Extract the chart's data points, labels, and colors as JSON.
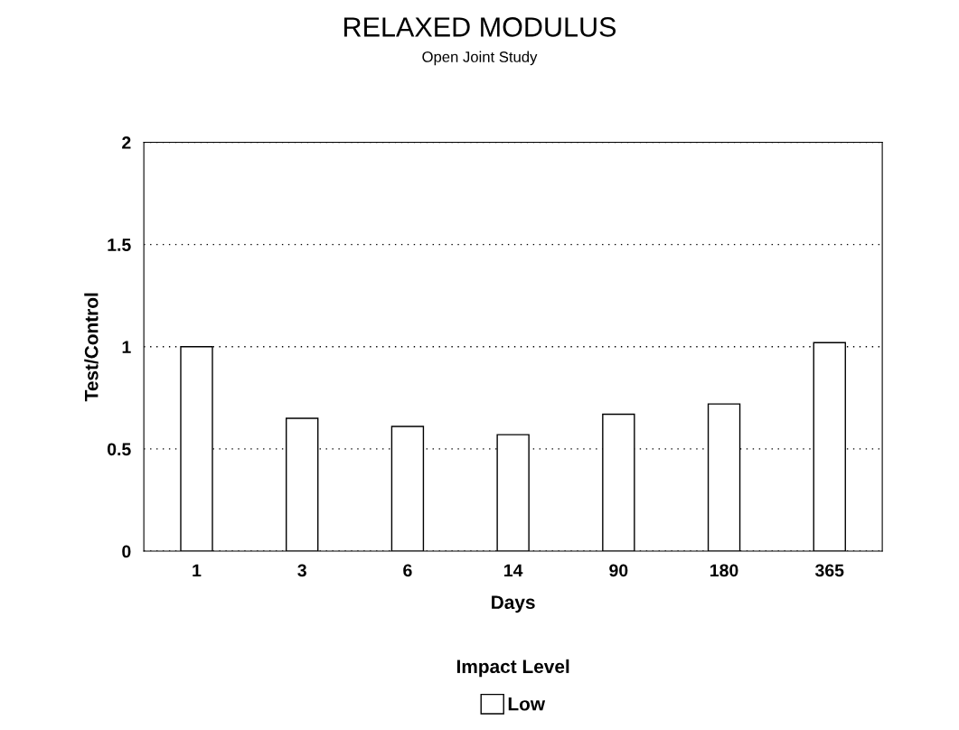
{
  "chart_data": {
    "type": "bar",
    "title": "RELAXED MODULUS",
    "subtitle": "Open Joint Study",
    "xlabel": "Days",
    "ylabel": "Test/Control",
    "categories": [
      "1",
      "3",
      "6",
      "14",
      "90",
      "180",
      "365"
    ],
    "series": [
      {
        "name": "Low",
        "color": "#ffffff",
        "values": [
          1.0,
          0.65,
          0.61,
          0.57,
          0.67,
          0.72,
          1.02
        ]
      }
    ],
    "legend_title": "Impact Level",
    "legend": "bottom",
    "ylim": [
      0,
      2
    ],
    "yticks": [
      0,
      {
        "value": 0.5,
        "label": "0.5"
      },
      1,
      {
        "value": 1.5,
        "label": "1.5"
      },
      2
    ],
    "grid": "y"
  }
}
